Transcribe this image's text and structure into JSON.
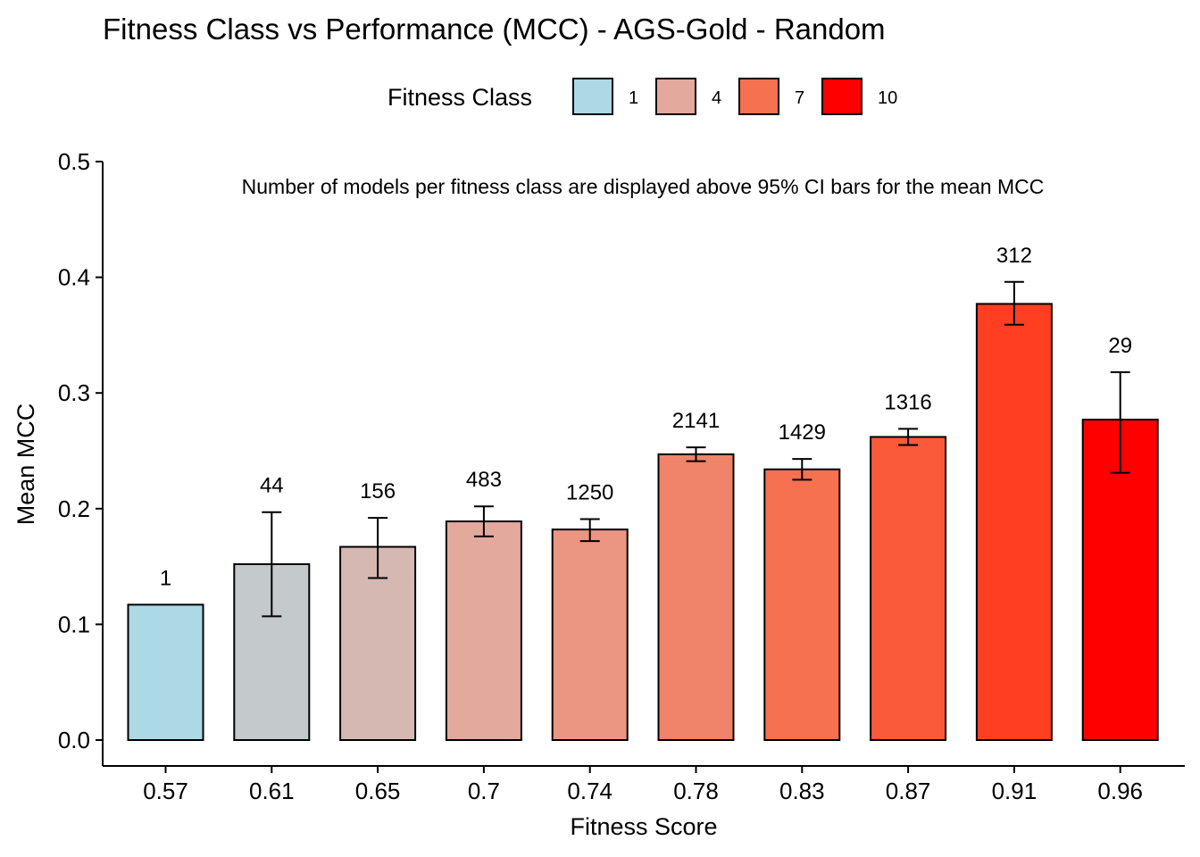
{
  "chart_data": {
    "type": "bar",
    "title": "Fitness Class vs Performance (MCC) - AGS-Gold - Random",
    "subtitle": "Number of models per fitness class are displayed above 95% CI bars for the mean MCC",
    "xlabel": "Fitness Score",
    "ylabel": "Mean MCC",
    "ylim": [
      0,
      0.5
    ],
    "yticks": [
      "0.0",
      "0.1",
      "0.2",
      "0.3",
      "0.4",
      "0.5"
    ],
    "categories": [
      "0.57",
      "0.61",
      "0.65",
      "0.7",
      "0.74",
      "0.78",
      "0.83",
      "0.87",
      "0.91",
      "0.96"
    ],
    "values": [
      0.117,
      0.152,
      0.167,
      0.189,
      0.182,
      0.247,
      0.234,
      0.262,
      0.377,
      0.277
    ],
    "ci_low": [
      null,
      0.107,
      0.14,
      0.176,
      0.172,
      0.241,
      0.225,
      0.255,
      0.359,
      0.231
    ],
    "ci_high": [
      null,
      0.197,
      0.192,
      0.202,
      0.191,
      0.253,
      0.243,
      0.269,
      0.396,
      0.318
    ],
    "counts": [
      "1",
      "44",
      "156",
      "483",
      "1250",
      "2141",
      "1429",
      "1316",
      "312",
      "29"
    ],
    "colors": [
      "#add8e6",
      "#c4c9cc",
      "#d5b8b2",
      "#e3a99c",
      "#eb9682",
      "#f08469",
      "#f57150",
      "#fa5a3a",
      "#ff3e22",
      "#ff0000"
    ],
    "legend": {
      "title": "Fitness Class",
      "position": "top",
      "items": [
        {
          "label": "1",
          "color": "#add8e6"
        },
        {
          "label": "4",
          "color": "#e3a99c"
        },
        {
          "label": "7",
          "color": "#f57150"
        },
        {
          "label": "10",
          "color": "#ff0000"
        }
      ]
    },
    "grid": false
  }
}
